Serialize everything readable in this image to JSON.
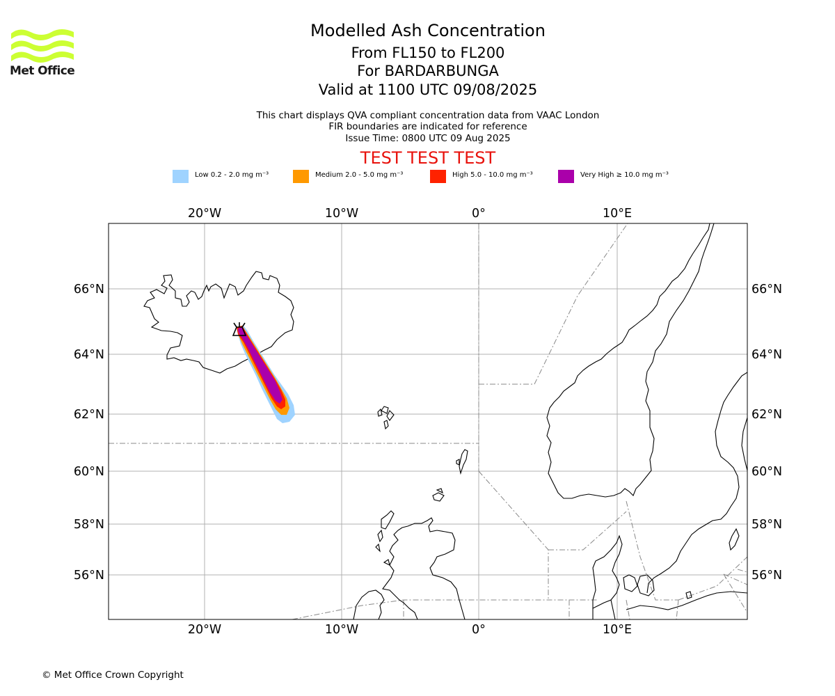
{
  "logo": {
    "text": "Met Office",
    "color": "#ccff33"
  },
  "title": {
    "line1": "Modelled Ash Concentration",
    "line2": "From FL150 to FL200",
    "line3": "For BARDARBUNGA",
    "line4": "Valid at 1100 UTC 09/08/2025"
  },
  "info": {
    "line1": "This chart displays QVA compliant concentration data from VAAC London",
    "line2": "FIR boundaries are indicated for reference",
    "line3": "Issue Time: 0800 UTC 09 Aug 2025"
  },
  "test_banner": "TEST TEST TEST",
  "legend": [
    {
      "label": "Low 0.2 - 2.0 mg m⁻³",
      "color": "#9fd3ff"
    },
    {
      "label": "Medium 2.0 - 5.0 mg m⁻³",
      "color": "#ff9900"
    },
    {
      "label": "High 5.0 - 10.0 mg m⁻³",
      "color": "#ff2200"
    },
    {
      "label": "Very High ≥ 10.0 mg m⁻³",
      "color": "#aa00aa"
    }
  ],
  "map": {
    "lon_labels": [
      "20°W",
      "10°W",
      "0°",
      "10°E"
    ],
    "lat_labels": [
      "66°N",
      "64°N",
      "62°N",
      "60°N",
      "58°N",
      "56°N"
    ],
    "volcano": "BARDARBUNGA"
  },
  "copyright": "© Met Office Crown Copyright"
}
